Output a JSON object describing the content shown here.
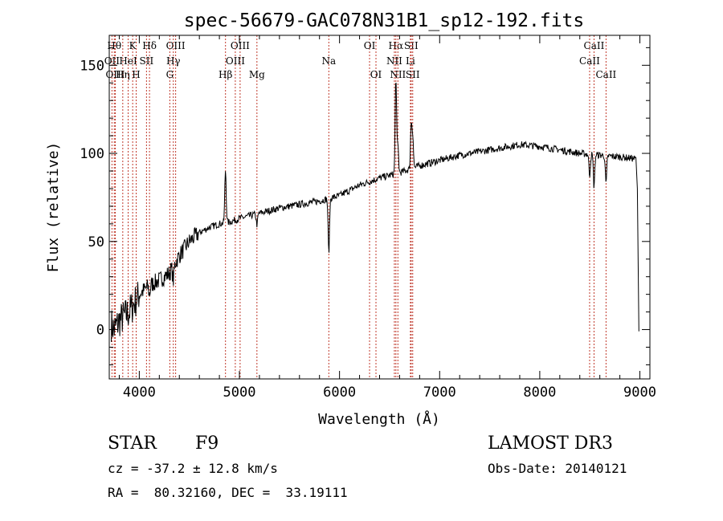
{
  "chart_data": {
    "type": "line",
    "title": "spec-56679-GAC078N31B1_sp12-192.fits",
    "xlabel": "Wavelength (Å)",
    "ylabel": "Flux (relative)",
    "xlim": [
      3700,
      9100
    ],
    "ylim": [
      -28,
      167
    ],
    "xticks": [
      4000,
      5000,
      6000,
      7000,
      8000,
      9000
    ],
    "yticks": [
      0,
      50,
      100,
      150
    ],
    "grid": false,
    "line_color": "#000000",
    "marker_color": "#c0392b",
    "line_markers": [
      {
        "label": "Hθ",
        "wave": 3750,
        "row": 0
      },
      {
        "label": "OII",
        "wave": 3727,
        "row": 1
      },
      {
        "label": "OIII",
        "wave": 3760,
        "row": 2
      },
      {
        "label": "K",
        "wave": 3934,
        "row": 0
      },
      {
        "label": "HeI",
        "wave": 3889,
        "row": 1
      },
      {
        "label": "Hη",
        "wave": 3835,
        "row": 2
      },
      {
        "label": "H",
        "wave": 3969,
        "row": 2
      },
      {
        "label": "SII",
        "wave": 4072,
        "row": 1
      },
      {
        "label": "Hδ",
        "wave": 4102,
        "row": 0
      },
      {
        "label": "OIII",
        "wave": 4363,
        "row": 0
      },
      {
        "label": "Hγ",
        "wave": 4340,
        "row": 1
      },
      {
        "label": "G",
        "wave": 4305,
        "row": 2
      },
      {
        "label": "Hβ",
        "wave": 4861,
        "row": 2
      },
      {
        "label": "OIII",
        "wave": 5007,
        "row": 0
      },
      {
        "label": "OIII",
        "wave": 4959,
        "row": 1
      },
      {
        "label": "Mg",
        "wave": 5175,
        "row": 2
      },
      {
        "label": "Na",
        "wave": 5893,
        "row": 1
      },
      {
        "label": "OI",
        "wave": 6300,
        "row": 0
      },
      {
        "label": "OI",
        "wave": 6364,
        "row": 2
      },
      {
        "label": "Hα",
        "wave": 6563,
        "row": 0
      },
      {
        "label": "NII",
        "wave": 6548,
        "row": 1
      },
      {
        "label": "NII",
        "wave": 6583,
        "row": 2
      },
      {
        "label": "SII",
        "wave": 6716,
        "row": 0
      },
      {
        "label": "Li",
        "wave": 6708,
        "row": 1
      },
      {
        "label": "SII",
        "wave": 6731,
        "row": 2
      },
      {
        "label": "CaII",
        "wave": 8542,
        "row": 0
      },
      {
        "label": "CaII",
        "wave": 8498,
        "row": 1
      },
      {
        "label": "CaII",
        "wave": 8662,
        "row": 2
      }
    ],
    "continuum": [
      [
        3700,
        5
      ],
      [
        3750,
        0
      ],
      [
        3800,
        5
      ],
      [
        3900,
        10
      ],
      [
        4000,
        20
      ],
      [
        4100,
        25
      ],
      [
        4200,
        28
      ],
      [
        4300,
        32
      ],
      [
        4400,
        42
      ],
      [
        4500,
        50
      ],
      [
        4600,
        55
      ],
      [
        4700,
        58
      ],
      [
        4800,
        60
      ],
      [
        4900,
        61
      ],
      [
        5000,
        63
      ],
      [
        5200,
        66
      ],
      [
        5400,
        69
      ],
      [
        5600,
        71
      ],
      [
        5800,
        73
      ],
      [
        6000,
        76
      ],
      [
        6200,
        82
      ],
      [
        6400,
        86
      ],
      [
        6600,
        89
      ],
      [
        6800,
        93
      ],
      [
        7000,
        96
      ],
      [
        7200,
        99
      ],
      [
        7400,
        101
      ],
      [
        7600,
        103
      ],
      [
        7800,
        105
      ],
      [
        8000,
        104
      ],
      [
        8200,
        102
      ],
      [
        8400,
        100
      ],
      [
        8600,
        99
      ],
      [
        8800,
        98
      ],
      [
        8950,
        97
      ]
    ],
    "features": [
      {
        "wave": 4102,
        "depth": -5
      },
      {
        "wave": 4340,
        "depth": -8
      },
      {
        "wave": 4861,
        "depth": 30
      },
      {
        "wave": 5175,
        "depth": -6
      },
      {
        "wave": 5893,
        "depth": -30
      },
      {
        "wave": 6563,
        "depth": 55
      },
      {
        "wave": 6583,
        "depth": 15
      },
      {
        "wave": 6716,
        "depth": 25
      },
      {
        "wave": 6731,
        "depth": 18
      },
      {
        "wave": 8498,
        "depth": -12
      },
      {
        "wave": 8542,
        "depth": -18
      },
      {
        "wave": 8662,
        "depth": -16
      }
    ]
  },
  "footer": {
    "object_type": "STAR",
    "subclass": "F9",
    "survey": "LAMOST DR3",
    "redshift": "cz = -37.2 ± 12.8 km/s",
    "obs_date": "Obs-Date: 20140121",
    "coords": "RA =  80.32160, DEC =  33.19111"
  }
}
